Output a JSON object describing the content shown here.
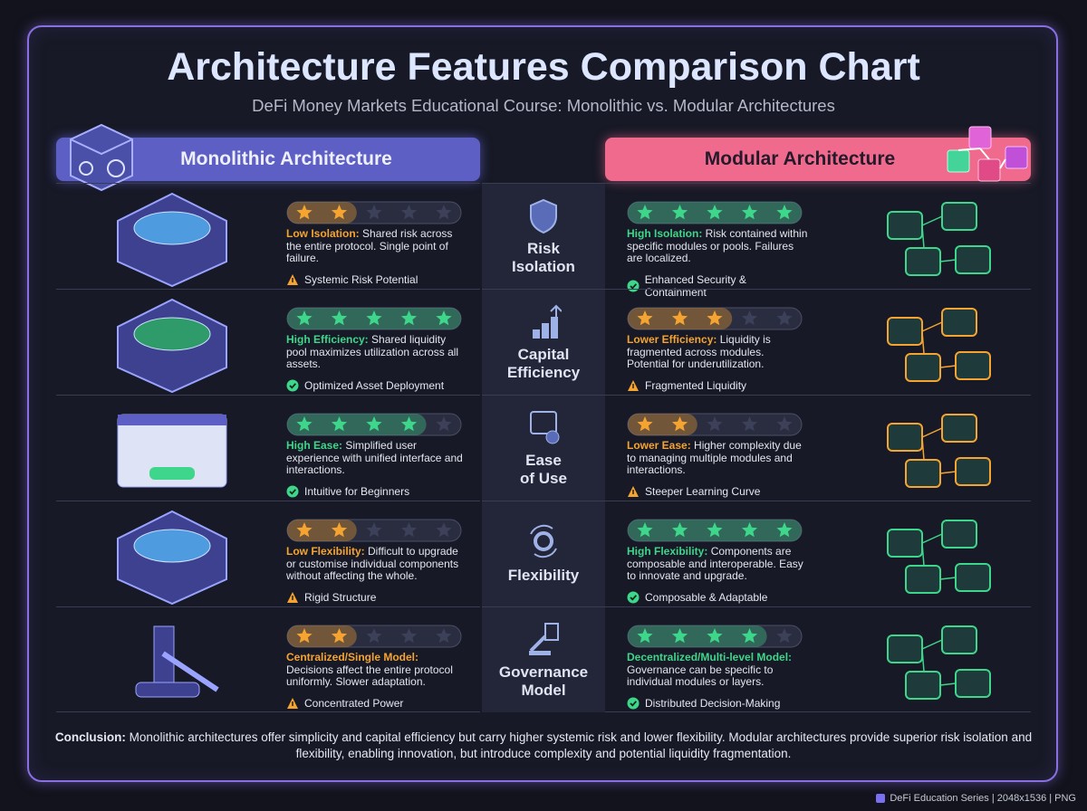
{
  "header": {
    "title": "Architecture Features Comparison Chart",
    "subtitle": "DeFi Money Markets Educational Course: Monolithic vs. Modular Architectures"
  },
  "columns": {
    "left": "Monolithic Architecture",
    "right": "Modular Architecture"
  },
  "rating_scale": 5,
  "rows": [
    {
      "label_lines": [
        "Risk",
        "Isolation"
      ],
      "left": {
        "rating": 2,
        "lead": "Low Isolation:",
        "text": "Shared risk across the entire protocol. Single point of failure.",
        "note": "Systemic Risk Potential",
        "note_type": "warning"
      },
      "right": {
        "rating": 5,
        "lead": "High Isolation:",
        "text": "Risk contained within specific modules or pools. Failures are localized.",
        "note": "Enhanced Security & Containment",
        "note_type": "check"
      }
    },
    {
      "label_lines": [
        "Capital",
        "Efficiency"
      ],
      "left": {
        "rating": 5,
        "lead": "High Efficiency:",
        "text": "Shared liquidity pool maximizes utilization across all assets.",
        "note": "Optimized Asset Deployment",
        "note_type": "check"
      },
      "right": {
        "rating": 3,
        "lead": "Lower Efficiency:",
        "text": "Liquidity is fragmented across modules. Potential for underutilization.",
        "note": "Fragmented Liquidity",
        "note_type": "warning"
      }
    },
    {
      "label_lines": [
        "Ease",
        "of Use"
      ],
      "left": {
        "rating": 4,
        "lead": "High Ease:",
        "text": "Simplified user experience with unified interface and interactions.",
        "note": "Intuitive for Beginners",
        "note_type": "check"
      },
      "right": {
        "rating": 2,
        "lead": "Lower Ease:",
        "text": "Higher complexity due to managing multiple modules and interactions.",
        "note": "Steeper Learning Curve",
        "note_type": "warning"
      }
    },
    {
      "label_lines": [
        "Flexibility"
      ],
      "left": {
        "rating": 2,
        "lead": "Low Flexibility:",
        "text": "Difficult to upgrade or customise individual components without affecting the whole.",
        "note": "Rigid Structure",
        "note_type": "warning"
      },
      "right": {
        "rating": 5,
        "lead": "High Flexibility:",
        "text": "Components are composable and interoperable. Easy to innovate and upgrade.",
        "note": "Composable & Adaptable",
        "note_type": "check"
      }
    },
    {
      "label_lines": [
        "Governance",
        "Model"
      ],
      "left": {
        "rating": 2,
        "lead": "Centralized/Single Model:",
        "text": "Decisions affect the entire protocol uniformly. Slower adaptation.",
        "note": "Concentrated Power",
        "note_type": "warning"
      },
      "right": {
        "rating": 4,
        "lead": "Decentralized/Multi-level Model:",
        "text": "Governance can be specific to individual modules or layers.",
        "note": "Distributed Decision-Making",
        "note_type": "check"
      }
    }
  ],
  "conclusion": {
    "lead": "Conclusion:",
    "text": "Monolithic architectures offer simplicity and capital efficiency but carry higher systemic risk and lower flexibility. Modular architectures provide superior risk isolation and flexibility, enabling innovation, but introduce complexity and potential liquidity fragmentation."
  },
  "footer": "DeFi Education Series | 2048x1536 | PNG"
}
